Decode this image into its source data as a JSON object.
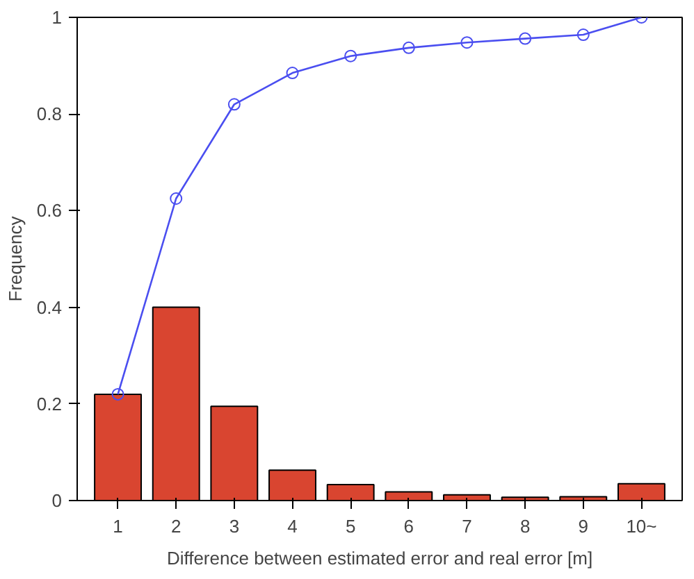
{
  "chart_data": {
    "type": "bar",
    "xlabel": "Difference between estimated error and real error [m]",
    "ylabel": "Frequency",
    "categories": [
      "1",
      "2",
      "3",
      "4",
      "5",
      "6",
      "7",
      "8",
      "9",
      "10~"
    ],
    "series": [
      {
        "color": "#d94530",
        "values": [
          0.22,
          0.4,
          0.195,
          0.063,
          0.033,
          0.018,
          0.012,
          0.007,
          0.008,
          0.035
        ]
      },
      {
        "type": "line",
        "color": "#4a4ef0",
        "marker": "circle",
        "values": [
          0.22,
          0.625,
          0.82,
          0.885,
          0.92,
          0.937,
          0.948,
          0.956,
          0.964,
          1.0
        ]
      }
    ],
    "ylim": [
      0,
      1
    ],
    "yticks": [
      0,
      0.2,
      0.4,
      0.6,
      0.8,
      1
    ],
    "grid": false
  }
}
